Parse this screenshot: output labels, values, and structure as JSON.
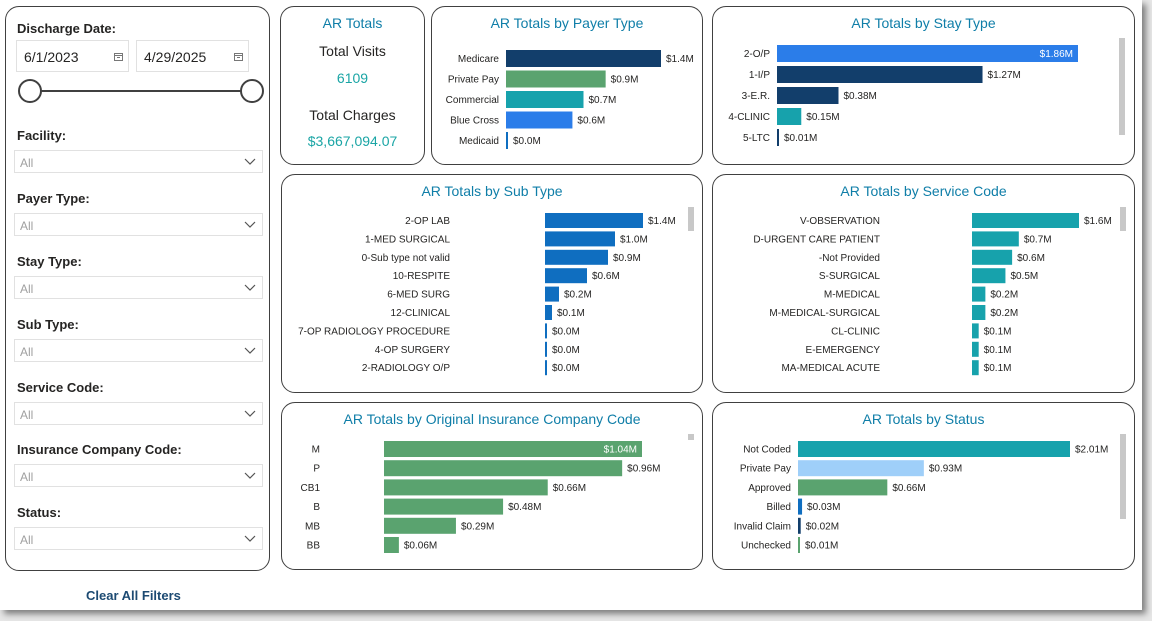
{
  "filters": {
    "discharge_date_label": "Discharge Date:",
    "start_date": "6/1/2023",
    "end_date": "4/29/2025",
    "dropdowns": [
      {
        "label": "Facility:",
        "value": "All"
      },
      {
        "label": "Payer Type:",
        "value": "All"
      },
      {
        "label": "Stay Type:",
        "value": "All"
      },
      {
        "label": "Sub Type:",
        "value": "All"
      },
      {
        "label": "Service Code:",
        "value": "All"
      },
      {
        "label": "Insurance Company Code:",
        "value": "All"
      },
      {
        "label": "Status:",
        "value": "All"
      }
    ],
    "clear_label": "Clear All Filters"
  },
  "kpi": {
    "title": "AR Totals",
    "visits_label": "Total Visits",
    "visits_value": "6109",
    "charges_label": "Total Charges",
    "charges_value": "$3,667,094.07"
  },
  "colors": {
    "navy": "#123e6b",
    "green": "#5aa36f",
    "teal": "#17a2ac",
    "blue": "#2b7de9",
    "royal": "#0f6ec0",
    "lightblue": "#9fcff9",
    "gray": "#c8c8c8"
  },
  "chart_data": [
    {
      "id": "payer",
      "type": "bar",
      "orientation": "horizontal",
      "title": "AR Totals by Payer Type",
      "unit": "$M",
      "categories": [
        "Medicare",
        "Private Pay",
        "Commercial",
        "Blue Cross",
        "Medicaid"
      ],
      "values": [
        1.4,
        0.9,
        0.7,
        0.6,
        0.0
      ],
      "labels": [
        "$1.4M",
        "$0.9M",
        "$0.7M",
        "$0.6M",
        "$0.0M"
      ],
      "colors": [
        "navy",
        "green",
        "teal",
        "blue",
        "royal"
      ]
    },
    {
      "id": "stay",
      "type": "bar",
      "orientation": "horizontal",
      "title": "AR Totals by Stay Type",
      "unit": "$M",
      "categories": [
        "2-O/P",
        "1-I/P",
        "3-E.R.",
        "4-CLINIC",
        "5-LTC"
      ],
      "values": [
        1.86,
        1.27,
        0.38,
        0.15,
        0.01
      ],
      "labels": [
        "$1.86M",
        "$1.27M",
        "$0.38M",
        "$0.15M",
        "$0.01M"
      ],
      "colors": [
        "blue",
        "navy",
        "navy",
        "teal",
        "navy"
      ]
    },
    {
      "id": "subtype",
      "type": "bar",
      "orientation": "horizontal",
      "title": "AR Totals by Sub Type",
      "unit": "$M",
      "categories": [
        "2-OP LAB",
        "1-MED SURGICAL",
        "0-Sub type not valid",
        "10-RESPITE",
        "6-MED SURG",
        "12-CLINICAL",
        "7-OP RADIOLOGY PROCEDURE",
        "4-OP SURGERY",
        "2-RADIOLOGY O/P"
      ],
      "values": [
        1.4,
        1.0,
        0.9,
        0.6,
        0.2,
        0.1,
        0.0,
        0.0,
        0.0
      ],
      "labels": [
        "$1.4M",
        "$1.0M",
        "$0.9M",
        "$0.6M",
        "$0.2M",
        "$0.1M",
        "$0.0M",
        "$0.0M",
        "$0.0M"
      ],
      "colors": [
        "royal",
        "royal",
        "royal",
        "royal",
        "royal",
        "royal",
        "royal",
        "royal",
        "royal"
      ]
    },
    {
      "id": "service",
      "type": "bar",
      "orientation": "horizontal",
      "title": "AR Totals by Service Code",
      "unit": "$M",
      "categories": [
        "V-OBSERVATION",
        "D-URGENT CARE PATIENT",
        "-Not Provided",
        "S-SURGICAL",
        "M-MEDICAL",
        "M-MEDICAL-SURGICAL",
        "CL-CLINIC",
        "E-EMERGENCY",
        "MA-MEDICAL ACUTE"
      ],
      "values": [
        1.6,
        0.7,
        0.6,
        0.5,
        0.2,
        0.2,
        0.1,
        0.1,
        0.1
      ],
      "labels": [
        "$1.6M",
        "$0.7M",
        "$0.6M",
        "$0.5M",
        "$0.2M",
        "$0.2M",
        "$0.1M",
        "$0.1M",
        "$0.1M"
      ],
      "colors": [
        "teal",
        "teal",
        "teal",
        "teal",
        "teal",
        "teal",
        "teal",
        "teal",
        "teal"
      ]
    },
    {
      "id": "insurance",
      "type": "bar",
      "orientation": "horizontal",
      "title": "AR Totals by Original Insurance Company Code",
      "unit": "$M",
      "categories": [
        "M",
        "P",
        "CB1",
        "B",
        "MB",
        "BB"
      ],
      "values": [
        1.04,
        0.96,
        0.66,
        0.48,
        0.29,
        0.06
      ],
      "labels": [
        "$1.04M",
        "$0.96M",
        "$0.66M",
        "$0.48M",
        "$0.29M",
        "$0.06M"
      ],
      "colors": [
        "green",
        "green",
        "green",
        "green",
        "green",
        "green"
      ]
    },
    {
      "id": "status",
      "type": "bar",
      "orientation": "horizontal",
      "title": "AR Totals by Status",
      "unit": "$M",
      "categories": [
        "Not Coded",
        "Private Pay",
        "Approved",
        "Billed",
        "Invalid Claim",
        "Unchecked"
      ],
      "values": [
        2.01,
        0.93,
        0.66,
        0.03,
        0.02,
        0.01
      ],
      "labels": [
        "$2.01M",
        "$0.93M",
        "$0.66M",
        "$0.03M",
        "$0.02M",
        "$0.01M"
      ],
      "colors": [
        "teal",
        "lightblue",
        "green",
        "royal",
        "navy",
        "green"
      ]
    }
  ]
}
